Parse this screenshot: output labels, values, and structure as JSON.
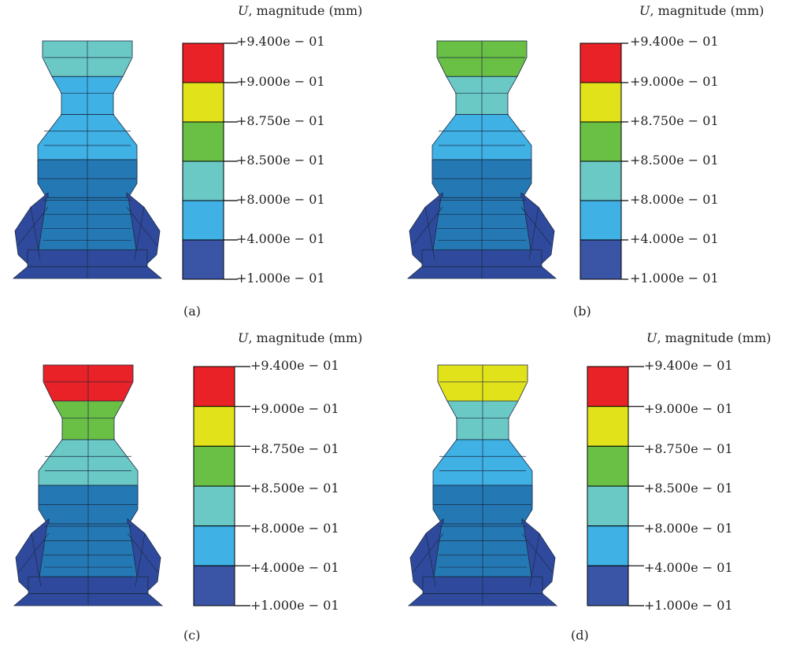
{
  "legend": {
    "title_var": "U",
    "title_rest": ", magnitude (mm)",
    "labels": [
      "+9.400e − 01",
      "+9.000e − 01",
      "+8.750e − 01",
      "+8.500e − 01",
      "+8.000e − 01",
      "+4.000e − 01",
      "+1.000e − 01"
    ],
    "colors": [
      "#e82226",
      "#e1e21a",
      "#6abf45",
      "#6bc9c5",
      "#3fb1e5",
      "#3b55a6"
    ]
  },
  "panels": [
    {
      "caption": "(a)",
      "bands": {
        "top": "#6bc9c5",
        "waist": "#3fb1e5",
        "shoulder": "#3fb1e5",
        "body": "#2478b3",
        "base": "#2f4a9c"
      }
    },
    {
      "caption": "(b)",
      "bands": {
        "top": "#6abf45",
        "waist": "#6bc9c5",
        "shoulder": "#3fb1e5",
        "body": "#2478b3",
        "base": "#2f4a9c"
      }
    },
    {
      "caption": "(c)",
      "bands": {
        "top": "#e82226",
        "waist": "#6abf45",
        "shoulder": "#6bc9c5",
        "body": "#2478b3",
        "base": "#2f4a9c"
      }
    },
    {
      "caption": "(d)",
      "bands": {
        "top": "#e1e21a",
        "waist": "#6bc9c5",
        "shoulder": "#3fb1e5",
        "body": "#2478b3",
        "base": "#2f4a9c"
      }
    }
  ]
}
